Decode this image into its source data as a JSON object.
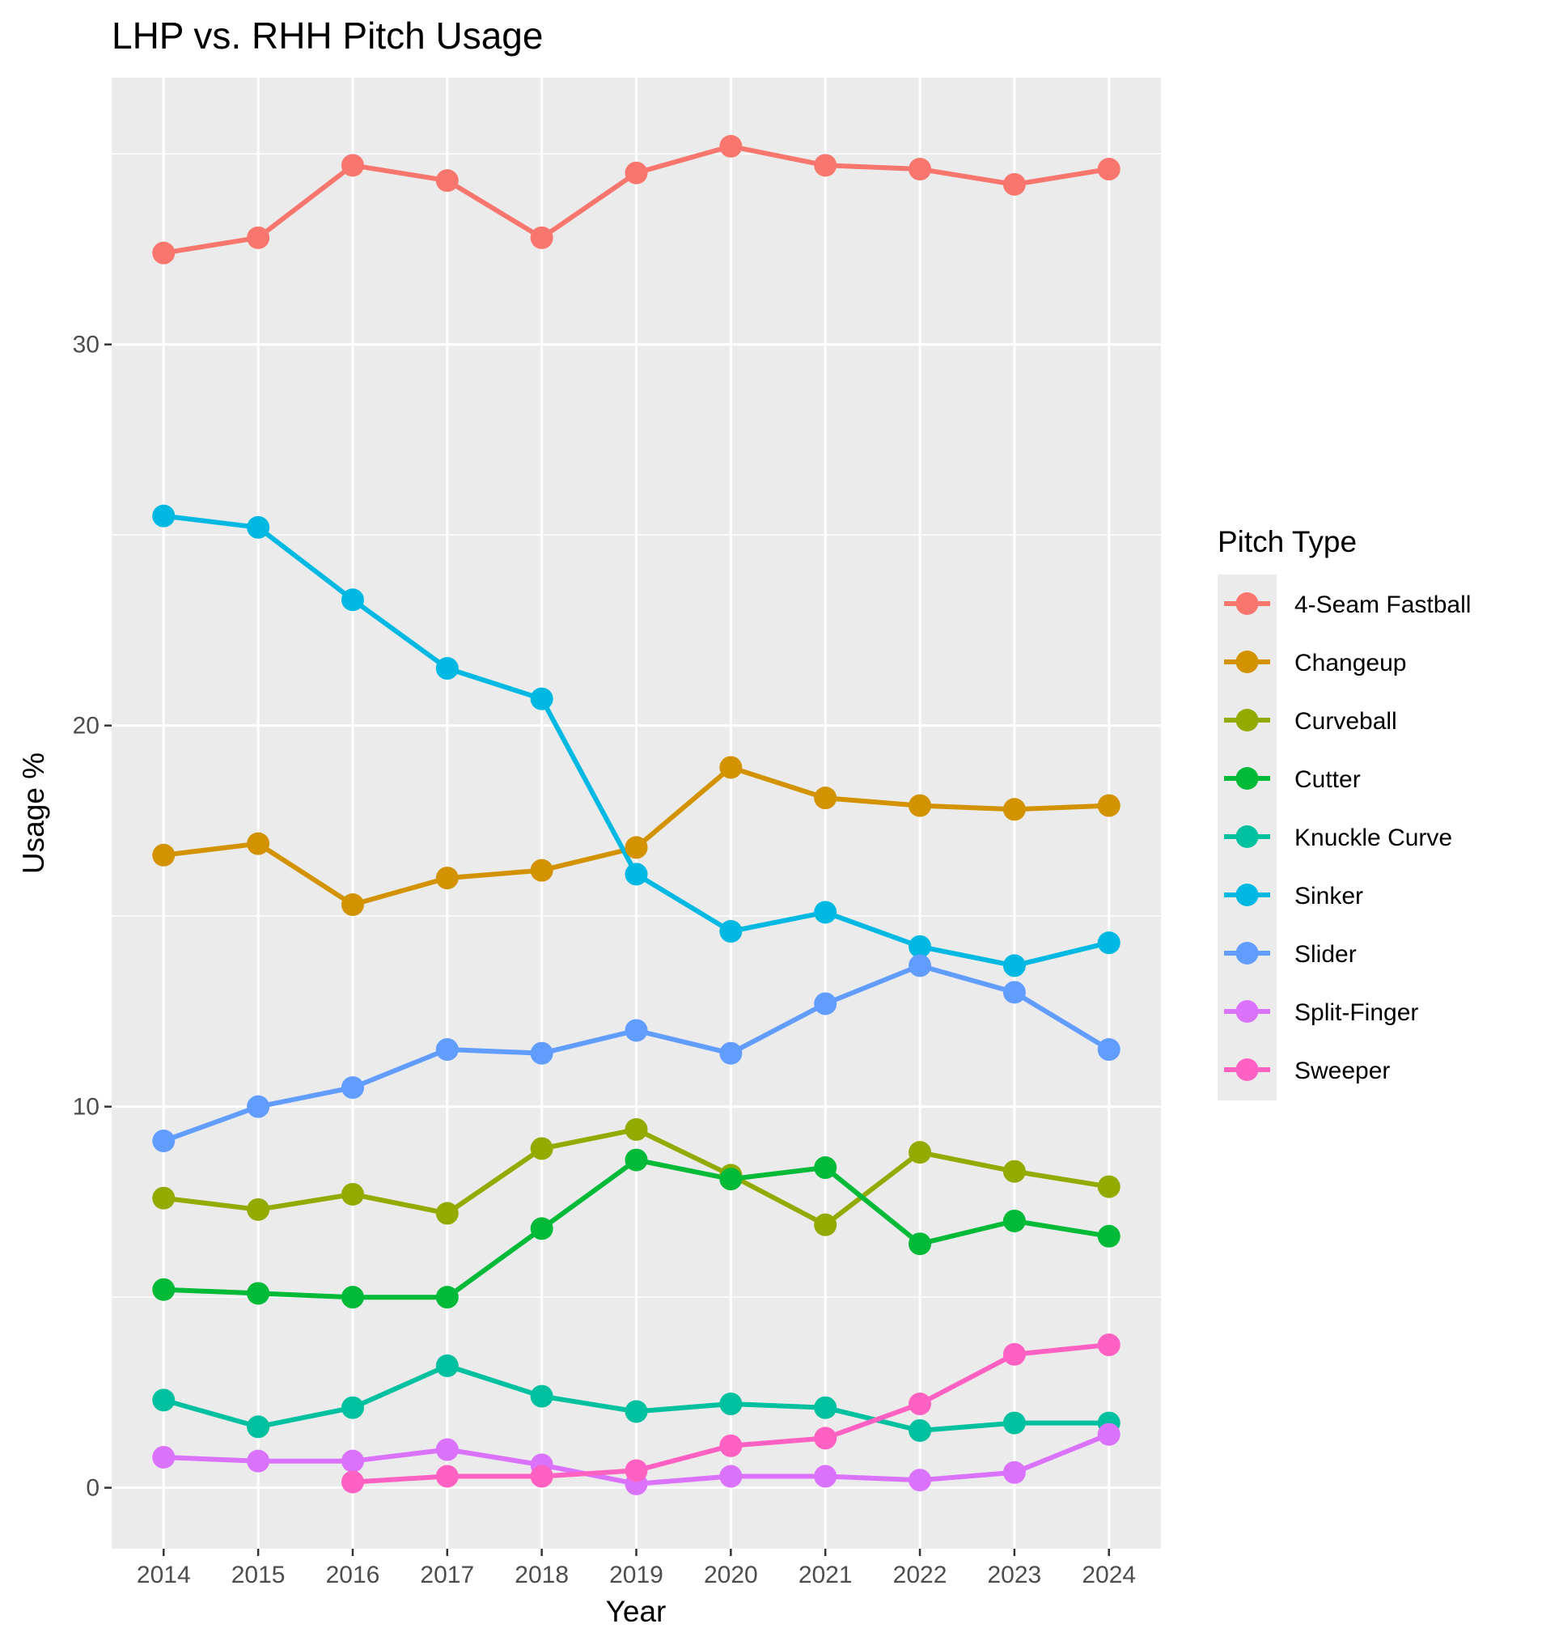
{
  "chart_data": {
    "type": "line",
    "title": "LHP vs. RHH Pitch Usage",
    "xlabel": "Year",
    "ylabel": "Usage %",
    "legend_title": "Pitch Type",
    "legend_position": "right",
    "grid": true,
    "xlim": [
      2013.45,
      2024.55
    ],
    "ylim": [
      -1.6,
      37.0
    ],
    "x_ticks": [
      "2014",
      "2015",
      "2016",
      "2017",
      "2018",
      "2019",
      "2020",
      "2021",
      "2022",
      "2023",
      "2024"
    ],
    "y_ticks": [
      0,
      10,
      20,
      30
    ],
    "y_tick_labels": [
      "0",
      "10",
      "20",
      "30"
    ],
    "series": [
      {
        "name": "4-Seam Fastball",
        "color": "#F8766D",
        "x": [
          2014,
          2015,
          2016,
          2017,
          2018,
          2019,
          2020,
          2021,
          2022,
          2023,
          2024
        ],
        "values": [
          32.4,
          32.8,
          34.7,
          34.3,
          32.8,
          34.5,
          35.2,
          34.7,
          34.6,
          34.2,
          34.6
        ]
      },
      {
        "name": "Changeup",
        "color": "#D39200",
        "x": [
          2014,
          2015,
          2016,
          2017,
          2018,
          2019,
          2020,
          2021,
          2022,
          2023,
          2024
        ],
        "values": [
          16.6,
          16.9,
          15.3,
          16.0,
          16.2,
          16.8,
          18.9,
          18.1,
          17.9,
          17.8,
          17.9
        ]
      },
      {
        "name": "Curveball",
        "color": "#93AA00",
        "x": [
          2014,
          2015,
          2016,
          2017,
          2018,
          2019,
          2020,
          2021,
          2022,
          2023,
          2024
        ],
        "values": [
          7.6,
          7.3,
          7.7,
          7.2,
          8.9,
          9.4,
          8.2,
          6.9,
          8.8,
          8.3,
          7.9
        ]
      },
      {
        "name": "Cutter",
        "color": "#00BA38",
        "x": [
          2014,
          2015,
          2016,
          2017,
          2018,
          2019,
          2020,
          2021,
          2022,
          2023,
          2024
        ],
        "values": [
          5.2,
          5.1,
          5.0,
          5.0,
          6.8,
          8.6,
          8.1,
          8.4,
          6.4,
          7.0,
          6.6
        ]
      },
      {
        "name": "Knuckle Curve",
        "color": "#00C19F",
        "x": [
          2014,
          2015,
          2016,
          2017,
          2018,
          2019,
          2020,
          2021,
          2022,
          2023,
          2024
        ],
        "values": [
          2.3,
          1.6,
          2.1,
          3.2,
          2.4,
          2.0,
          2.2,
          2.1,
          1.5,
          1.7,
          1.7
        ]
      },
      {
        "name": "Sinker",
        "color": "#00B9E3",
        "x": [
          2014,
          2015,
          2016,
          2017,
          2018,
          2019,
          2020,
          2021,
          2022,
          2023,
          2024
        ],
        "values": [
          25.5,
          25.2,
          23.3,
          21.5,
          20.7,
          16.1,
          14.6,
          15.1,
          14.2,
          13.7,
          14.3
        ]
      },
      {
        "name": "Slider",
        "color": "#619CFF",
        "x": [
          2014,
          2015,
          2016,
          2017,
          2018,
          2019,
          2020,
          2021,
          2022,
          2023,
          2024
        ],
        "values": [
          9.1,
          10.0,
          10.5,
          11.5,
          11.4,
          12.0,
          11.4,
          12.7,
          13.7,
          13.0,
          11.5
        ]
      },
      {
        "name": "Split-Finger",
        "color": "#DB72FB",
        "x": [
          2014,
          2015,
          2016,
          2017,
          2018,
          2019,
          2020,
          2021,
          2022,
          2023,
          2024
        ],
        "values": [
          0.8,
          0.7,
          0.7,
          1.0,
          0.6,
          0.1,
          0.3,
          0.3,
          0.2,
          0.4,
          1.4
        ]
      },
      {
        "name": "Sweeper",
        "color": "#FF61C3",
        "x": [
          2016,
          2017,
          2018,
          2019,
          2020,
          2021,
          2022,
          2023,
          2024
        ],
        "values": [
          0.15,
          0.3,
          0.3,
          0.45,
          1.1,
          1.3,
          2.2,
          3.5,
          3.75
        ]
      }
    ]
  }
}
